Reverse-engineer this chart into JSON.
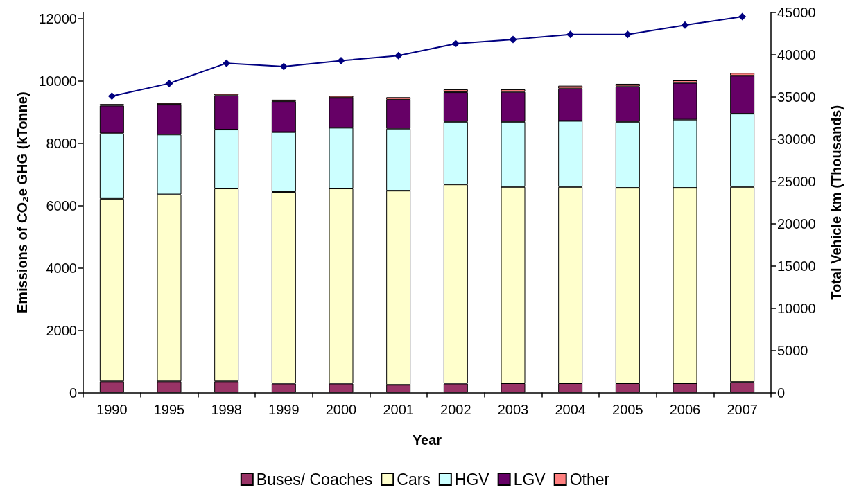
{
  "chart_data": {
    "type": "bar",
    "stacked": true,
    "xlabel": "Year",
    "ylabel": "Emissions of CO₂e GHG (kTonne)",
    "y2label": "Total Vehicle km (Thousands)",
    "categories": [
      "1990",
      "1995",
      "1998",
      "1999",
      "2000",
      "2001",
      "2002",
      "2003",
      "2004",
      "2005",
      "2006",
      "2007"
    ],
    "series": [
      {
        "name": "Buses/ Coaches",
        "color": "#993366",
        "values": [
          360,
          360,
          360,
          290,
          290,
          250,
          290,
          300,
          300,
          300,
          300,
          340
        ]
      },
      {
        "name": "Cars",
        "color": "#ffffcc",
        "values": [
          5860,
          6000,
          6190,
          6150,
          6260,
          6230,
          6390,
          6300,
          6300,
          6270,
          6270,
          6260
        ]
      },
      {
        "name": "HGV",
        "color": "#ccffff",
        "values": [
          2100,
          1920,
          1890,
          1920,
          1950,
          1990,
          2010,
          2090,
          2120,
          2120,
          2190,
          2350
        ]
      },
      {
        "name": "LGV",
        "color": "#660066",
        "values": [
          890,
          960,
          1100,
          990,
          960,
          930,
          950,
          960,
          1040,
          1140,
          1180,
          1220
        ]
      },
      {
        "name": "Other",
        "color": "#ff8080",
        "values": [
          50,
          50,
          50,
          50,
          60,
          80,
          90,
          80,
          90,
          80,
          80,
          90
        ]
      },
      {
        "type": "line",
        "axis": "y2",
        "color": "#000080",
        "marker": "diamond",
        "values": [
          35100,
          36600,
          39000,
          38600,
          39300,
          39900,
          41300,
          41800,
          42400,
          42400,
          43500,
          44500
        ]
      }
    ],
    "ylim": [
      0,
      12200
    ],
    "yticks": [
      0,
      2000,
      4000,
      6000,
      8000,
      10000,
      12000
    ],
    "y2lim": [
      0,
      45000
    ],
    "y2ticks": [
      0,
      5000,
      10000,
      15000,
      20000,
      25000,
      30000,
      35000,
      40000,
      45000
    ],
    "grid": false,
    "legend": "bottom"
  }
}
